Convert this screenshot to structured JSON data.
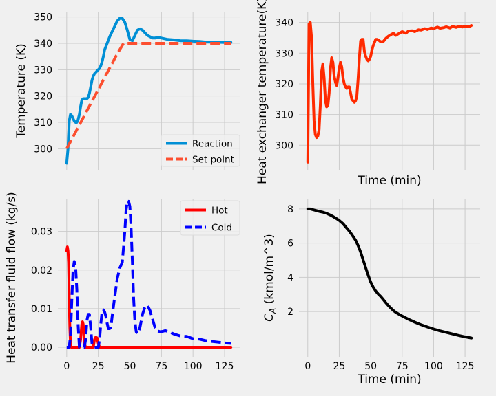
{
  "chart_data": [
    {
      "type": "line",
      "ylabel": "Temperature (K)",
      "xlabel": "",
      "xlim": [
        -7,
        137
      ],
      "ylim": [
        292,
        352
      ],
      "xticks": [
        0,
        25,
        50,
        75,
        100,
        125
      ],
      "xtick_labels_visible": false,
      "yticks": [
        300,
        310,
        320,
        330,
        340,
        350
      ],
      "grid": true,
      "legend": "lower-right",
      "series": [
        {
          "name": "Reaction",
          "color": "#008fd5",
          "dash": "solid",
          "x": [
            0,
            1,
            2,
            3,
            4,
            5,
            6,
            7,
            8,
            9,
            10,
            11,
            12,
            13,
            14,
            15,
            16,
            17,
            18,
            19,
            20,
            21,
            22,
            23,
            24,
            25,
            26,
            27,
            28,
            29,
            30,
            32,
            34,
            36,
            38,
            40,
            42,
            44,
            46,
            48,
            50,
            52,
            54,
            56,
            58,
            60,
            62,
            64,
            66,
            68,
            70,
            72,
            75,
            80,
            85,
            90,
            95,
            100,
            105,
            110,
            115,
            120,
            125,
            130
          ],
          "y": [
            294.5,
            300,
            310.5,
            313,
            312.5,
            311.5,
            310.5,
            310,
            310,
            311,
            313,
            316,
            318.5,
            319,
            319,
            319,
            319,
            319.5,
            321,
            323.5,
            326,
            327.5,
            328.5,
            329,
            329.5,
            330,
            330.5,
            331.5,
            333,
            335,
            337.5,
            340,
            342.5,
            344.5,
            346.5,
            348.5,
            349.5,
            349.5,
            348,
            345,
            341.5,
            341,
            343,
            345,
            345.5,
            345,
            344,
            343,
            342.5,
            342,
            342,
            342.3,
            342,
            341.5,
            341.3,
            341,
            341,
            340.8,
            340.7,
            340.5,
            340.5,
            340.4,
            340.3,
            340.3
          ]
        },
        {
          "name": "Set point",
          "color": "#fc4f30",
          "dash": "dashed",
          "x": [
            0,
            5,
            10,
            15,
            20,
            25,
            30,
            35,
            40,
            45,
            50,
            60,
            80,
            100,
            130
          ],
          "y": [
            300,
            304.5,
            309,
            313.5,
            318,
            322.5,
            327,
            331.5,
            336,
            340,
            340,
            340,
            340,
            340,
            340
          ]
        }
      ]
    },
    {
      "type": "line",
      "xlabel": "Time (min)",
      "ylabel": "Heat exchanger temperature(K)",
      "xlim": [
        -7,
        137
      ],
      "ylim": [
        292,
        343.5
      ],
      "xticks": [
        0,
        25,
        50,
        75,
        100,
        125
      ],
      "xtick_labels_visible": false,
      "yticks": [
        300,
        310,
        320,
        330,
        340
      ],
      "grid": true,
      "series": [
        {
          "color": "#ff2a00",
          "dash": "solid",
          "x": [
            0,
            1,
            2,
            3,
            4,
            5,
            6,
            7,
            8,
            9,
            10,
            11,
            12,
            13,
            14,
            15,
            16,
            17,
            18,
            19,
            20,
            21,
            22,
            23,
            24,
            25,
            26,
            27,
            28,
            29,
            30,
            31,
            32,
            33,
            34,
            35,
            36,
            37,
            38,
            39,
            40,
            41,
            42,
            43,
            44,
            45,
            46,
            47,
            48,
            49,
            50,
            51,
            52,
            53,
            54,
            55,
            56,
            57,
            58,
            60,
            62,
            64,
            66,
            68,
            70,
            72,
            75,
            78,
            80,
            83,
            85,
            88,
            90,
            93,
            95,
            98,
            100,
            103,
            105,
            108,
            110,
            113,
            115,
            118,
            120,
            123,
            125,
            128,
            130
          ],
          "y": [
            294.5,
            339.5,
            340,
            335,
            320,
            308,
            303.5,
            302.5,
            303,
            305,
            313,
            324,
            326.5,
            322,
            314.5,
            312.5,
            313,
            317,
            325,
            328.5,
            327,
            322.5,
            320.5,
            319.5,
            322,
            325,
            327,
            325.5,
            322,
            320,
            319,
            318.5,
            319,
            319,
            317,
            315,
            314.5,
            314,
            314.5,
            316,
            321.5,
            328.5,
            334,
            334.5,
            334.5,
            330.5,
            329,
            328,
            327.5,
            328,
            329,
            331,
            332.5,
            333.5,
            334.5,
            334.5,
            334.3,
            334,
            333.7,
            333.8,
            334.8,
            335.5,
            336,
            336.5,
            335.8,
            336.3,
            337,
            336.5,
            337.2,
            337.3,
            337,
            337.6,
            337.5,
            338,
            337.7,
            338.2,
            338,
            338.5,
            338.1,
            338.3,
            338.6,
            338.2,
            338.7,
            338.4,
            338.7,
            338.5,
            338.8,
            338.6,
            339
          ]
        }
      ]
    },
    {
      "type": "line",
      "ylabel": "Heat transfer fluid flow (kg/s)",
      "xlabel": "",
      "xlim": [
        -7,
        137
      ],
      "ylim": [
        -0.0025,
        0.0385
      ],
      "xticks": [
        0,
        25,
        50,
        75,
        100,
        125
      ],
      "xtick_labels": [
        "0",
        "25",
        "50",
        "75",
        "100",
        "125"
      ],
      "yticks": [
        0.0,
        0.01,
        0.02,
        0.03
      ],
      "ytick_labels": [
        "0.00",
        "0.01",
        "0.02",
        "0.03"
      ],
      "grid": true,
      "legend": "upper-right",
      "series": [
        {
          "name": "Hot",
          "color": "#ff0000",
          "dash": "solid",
          "x": [
            0,
            0.5,
            1,
            1.5,
            2,
            2.5,
            3,
            3.5,
            4,
            5,
            6,
            8,
            10,
            11,
            12,
            12.5,
            13,
            13.5,
            14,
            15,
            16,
            18,
            20,
            21,
            22,
            23,
            24,
            25,
            26,
            28,
            30,
            40,
            50,
            60,
            80,
            100,
            120,
            130
          ],
          "y": [
            0.025,
            0.026,
            0.025,
            0.022,
            0.012,
            0.005,
            0.001,
            0,
            0,
            0,
            0,
            0,
            0,
            0.002,
            0.006,
            0.0066,
            0.006,
            0.004,
            0.001,
            0,
            0,
            0,
            0,
            0,
            0.002,
            0.0026,
            0.0024,
            0.001,
            0,
            0,
            0,
            0,
            0,
            0,
            0,
            0,
            0,
            0
          ]
        },
        {
          "name": "Cold",
          "color": "#0000ff",
          "dash": "dashed",
          "x": [
            0,
            2,
            3,
            4,
            5,
            6,
            7,
            8,
            9,
            10,
            12,
            14,
            15,
            16,
            17,
            18,
            19,
            20,
            22,
            24,
            25,
            26,
            27,
            28,
            29,
            30,
            31,
            32,
            33,
            34,
            35,
            36,
            38,
            40,
            42,
            44,
            46,
            47,
            48,
            49,
            50,
            51,
            52,
            53,
            54,
            55,
            56,
            57,
            58,
            59,
            60,
            62,
            64,
            66,
            68,
            70,
            72,
            74,
            76,
            78,
            80,
            85,
            90,
            95,
            100,
            105,
            110,
            115,
            120,
            125,
            130
          ],
          "y": [
            0,
            0,
            0.003,
            0.012,
            0.02,
            0.0222,
            0.021,
            0.015,
            0.006,
            0,
            0,
            0,
            0.002,
            0.007,
            0.0085,
            0.0085,
            0.005,
            0.001,
            0,
            0,
            0,
            0.002,
            0.006,
            0.0093,
            0.0097,
            0.0092,
            0.008,
            0.0062,
            0.0048,
            0.0048,
            0.0052,
            0.008,
            0.013,
            0.0178,
            0.0205,
            0.022,
            0.03,
            0.0355,
            0.0378,
            0.0378,
            0.0365,
            0.031,
            0.022,
            0.0125,
            0.0068,
            0.004,
            0.0035,
            0.004,
            0.0052,
            0.0068,
            0.0085,
            0.0105,
            0.0108,
            0.0095,
            0.0072,
            0.005,
            0.0042,
            0.004,
            0.0041,
            0.0043,
            0.0041,
            0.0034,
            0.0029,
            0.0028,
            0.0022,
            0.0021,
            0.0017,
            0.0015,
            0.0013,
            0.0011,
            0.001
          ]
        }
      ]
    },
    {
      "type": "line",
      "xlabel": "Time (min)",
      "ylabel": "C_A (kmol/m^3)",
      "xlim": [
        -7,
        137
      ],
      "ylim": [
        -0.65,
        8.6
      ],
      "xticks": [
        0,
        25,
        50,
        75,
        100,
        125
      ],
      "xtick_labels": [
        "0",
        "25",
        "50",
        "75",
        "100",
        "125"
      ],
      "yticks": [
        2,
        4,
        6,
        8
      ],
      "ytick_labels": [
        "2",
        "4",
        "6",
        "8"
      ],
      "grid": true,
      "series": [
        {
          "color": "#000000",
          "dash": "solid",
          "x": [
            0,
            2,
            5,
            8,
            10,
            12,
            15,
            18,
            20,
            22,
            25,
            28,
            30,
            33,
            35,
            38,
            40,
            42,
            44,
            46,
            48,
            50,
            52,
            54,
            56,
            58,
            60,
            62,
            64,
            66,
            68,
            70,
            73,
            76,
            80,
            85,
            90,
            95,
            100,
            105,
            110,
            115,
            120,
            125,
            130
          ],
          "y": [
            8.0,
            8.0,
            7.94,
            7.88,
            7.84,
            7.81,
            7.74,
            7.64,
            7.56,
            7.47,
            7.33,
            7.14,
            6.96,
            6.7,
            6.5,
            6.17,
            5.86,
            5.48,
            5.03,
            4.57,
            4.12,
            3.72,
            3.42,
            3.2,
            3.02,
            2.88,
            2.7,
            2.52,
            2.35,
            2.2,
            2.06,
            1.95,
            1.82,
            1.7,
            1.55,
            1.38,
            1.23,
            1.1,
            0.98,
            0.87,
            0.78,
            0.69,
            0.6,
            0.52,
            0.45
          ]
        }
      ]
    }
  ]
}
